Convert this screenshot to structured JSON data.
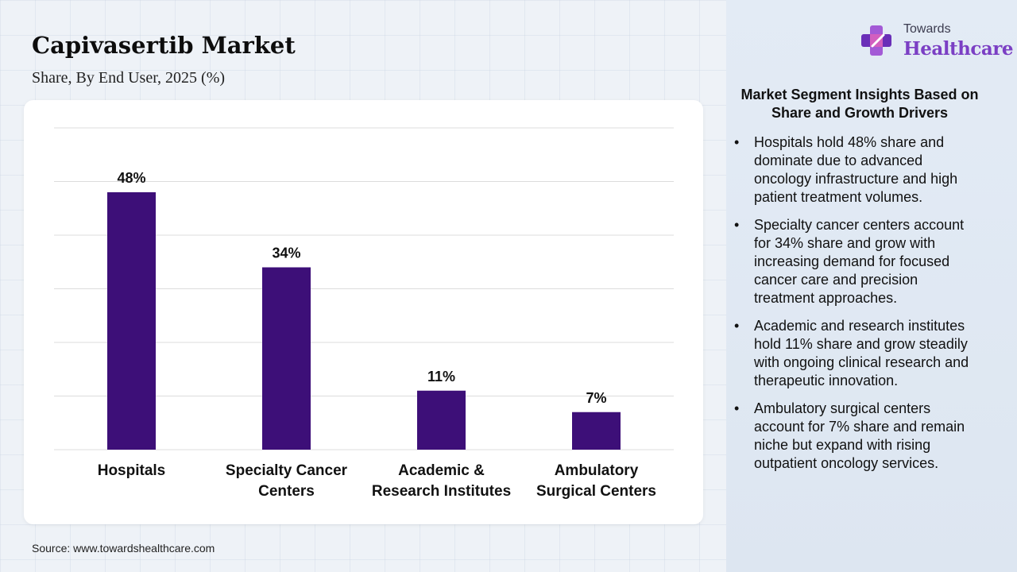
{
  "header": {
    "title": "Capivasertib Market",
    "subtitle": "Share, By End User, 2025 (%)"
  },
  "source": "Source: www.towardshealthcare.com",
  "logo": {
    "line1": "Towards",
    "line2": "Healthcare",
    "icon": "medical-cross-icon"
  },
  "insights": {
    "title": "Market Segment Insights Based on Share and Growth Drivers",
    "bullet": "•",
    "items": [
      "Hospitals hold 48% share and dominate due to advanced oncology infrastructure and high patient treatment volumes.",
      "Specialty cancer centers account for 34% share and grow with increasing demand for focused cancer care and precision treatment approaches.",
      "Academic and research institutes hold 11% share and grow steadily with ongoing clinical research and therapeutic innovation.",
      "Ambulatory surgical centers account for 7% share and remain niche but expand with rising outpatient oncology services."
    ]
  },
  "colors": {
    "bar": "#3d0f78",
    "grid": "#dcdcdc",
    "logo_accent": "#7b3fc4"
  },
  "chart_data": {
    "type": "bar",
    "categories": [
      "Hospitals",
      "Specialty Cancer Centers",
      "Academic & Research Institutes",
      "Ambulatory Surgical Centers"
    ],
    "category_lines": [
      [
        "Hospitals"
      ],
      [
        "Specialty Cancer",
        "Centers"
      ],
      [
        "Academic &",
        "Research Institutes"
      ],
      [
        "Ambulatory",
        "Surgical Centers"
      ]
    ],
    "values": [
      48,
      34,
      11,
      7
    ],
    "data_labels": [
      "48%",
      "34%",
      "11%",
      "7%"
    ],
    "ylim": [
      0,
      60
    ],
    "grid": true,
    "legend": "none"
  }
}
